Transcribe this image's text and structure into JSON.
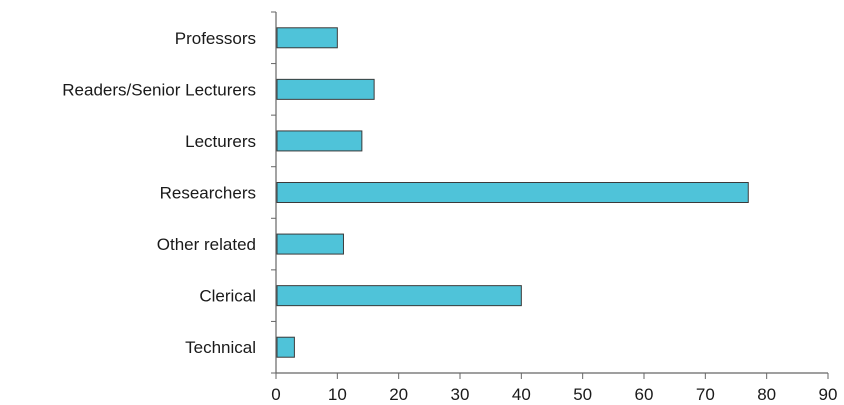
{
  "chart_data": {
    "type": "bar",
    "orientation": "horizontal",
    "title": "",
    "xlabel": "",
    "ylabel": "",
    "categories": [
      "Professors",
      "Readers/Senior Lecturers",
      "Lecturers",
      "Researchers",
      "Other related",
      "Clerical",
      "Technical"
    ],
    "values": [
      10,
      16,
      14,
      77,
      11,
      40,
      3
    ],
    "xlim": [
      0,
      90
    ],
    "xticks": [
      "0",
      "10",
      "20",
      "30",
      "40",
      "50",
      "60",
      "70",
      "80",
      "90"
    ],
    "grid": false,
    "legend": "none",
    "colors": {
      "bar_fill": "#4fc3d9",
      "bar_stroke": "#3a3a3a",
      "axis": "#666666"
    }
  }
}
